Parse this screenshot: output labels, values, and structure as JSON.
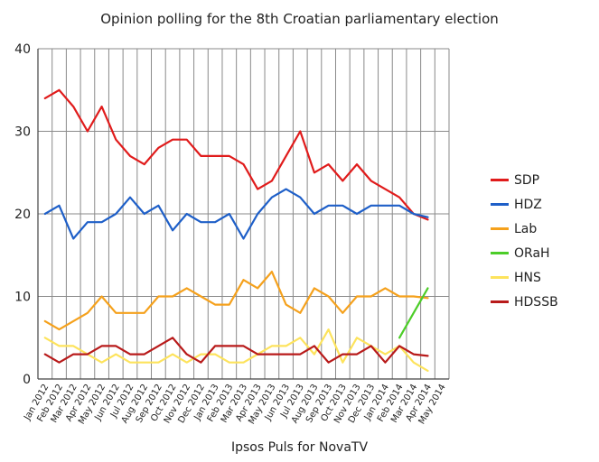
{
  "chart_data": {
    "type": "line",
    "title": "Opinion polling for the 8th Croatian parliamentary election",
    "xlabel": "Ipsos Puls for NovaTV",
    "ylabel": "",
    "ylim": [
      0,
      40
    ],
    "yticks": [
      "0",
      "10",
      "20",
      "30",
      "40"
    ],
    "grid": true,
    "legend_position": "right",
    "x": [
      "Jan 2012",
      "Feb 2012",
      "Mar 2012",
      "Apr 2012",
      "May 2012",
      "Jun 2012",
      "Jul 2012",
      "Aug 2012",
      "Sep 2012",
      "Oct 2012",
      "Nov 2012",
      "Dec 2012",
      "Jan 2013",
      "Feb 2013",
      "Mar 2013",
      "Apr 2013",
      "May 2013",
      "Jun 2013",
      "Jul 2013",
      "Aug 2013",
      "Sep 2013",
      "Oct 2013",
      "Nov 2013",
      "Dec 2013",
      "Jan 2014",
      "Feb 2014",
      "Mar 2014",
      "Apr 2014",
      "May 2014"
    ],
    "series": [
      {
        "name": "SDP",
        "color": "#e01b1b",
        "points": [
          [
            0,
            34
          ],
          [
            1,
            35
          ],
          [
            2,
            33
          ],
          [
            3,
            30
          ],
          [
            4,
            33
          ],
          [
            5,
            29
          ],
          [
            6,
            27
          ],
          [
            7,
            26
          ],
          [
            8,
            28
          ],
          [
            9,
            29
          ],
          [
            10,
            29
          ],
          [
            11,
            27
          ],
          [
            12,
            27
          ],
          [
            13,
            27
          ],
          [
            14,
            26
          ],
          [
            15,
            23
          ],
          [
            16,
            24
          ],
          [
            17,
            27
          ],
          [
            18,
            30
          ],
          [
            19,
            25
          ],
          [
            20,
            26
          ],
          [
            21,
            24
          ],
          [
            22,
            26
          ],
          [
            23,
            24
          ],
          [
            24,
            23
          ],
          [
            25,
            22
          ],
          [
            26,
            20
          ],
          [
            27,
            19.3
          ]
        ]
      },
      {
        "name": "HDZ",
        "color": "#1e5fc8",
        "points": [
          [
            0,
            20
          ],
          [
            1,
            21
          ],
          [
            2,
            17
          ],
          [
            3,
            19
          ],
          [
            4,
            19
          ],
          [
            5,
            20
          ],
          [
            6,
            22
          ],
          [
            7,
            20
          ],
          [
            8,
            21
          ],
          [
            9,
            18
          ],
          [
            10,
            20
          ],
          [
            11,
            19
          ],
          [
            12,
            19
          ],
          [
            13,
            20
          ],
          [
            14,
            17
          ],
          [
            15,
            20
          ],
          [
            16,
            22
          ],
          [
            17,
            23
          ],
          [
            18,
            22
          ],
          [
            19,
            20
          ],
          [
            20,
            21
          ],
          [
            21,
            21
          ],
          [
            22,
            20
          ],
          [
            23,
            21
          ],
          [
            24,
            21
          ],
          [
            25,
            21
          ],
          [
            26,
            20
          ],
          [
            27,
            19.6
          ]
        ]
      },
      {
        "name": "Lab",
        "color": "#f5a11c",
        "points": [
          [
            0,
            7
          ],
          [
            1,
            6
          ],
          [
            2,
            7
          ],
          [
            3,
            8
          ],
          [
            4,
            10
          ],
          [
            5,
            8
          ],
          [
            6,
            8
          ],
          [
            7,
            8
          ],
          [
            8,
            10
          ],
          [
            9,
            10
          ],
          [
            10,
            11
          ],
          [
            11,
            10
          ],
          [
            12,
            9
          ],
          [
            13,
            9
          ],
          [
            14,
            12
          ],
          [
            15,
            11
          ],
          [
            16,
            13
          ],
          [
            17,
            9
          ],
          [
            18,
            8
          ],
          [
            19,
            11
          ],
          [
            20,
            10
          ],
          [
            21,
            8
          ],
          [
            22,
            10
          ],
          [
            23,
            10
          ],
          [
            24,
            11
          ],
          [
            25,
            10
          ],
          [
            26,
            10
          ],
          [
            27,
            9.8
          ]
        ]
      },
      {
        "name": "ORaH",
        "color": "#4ccd28",
        "points": [
          [
            25,
            5
          ],
          [
            26,
            8
          ],
          [
            27,
            11
          ]
        ]
      },
      {
        "name": "HNS",
        "color": "#fde35c",
        "points": [
          [
            0,
            5
          ],
          [
            1,
            4
          ],
          [
            2,
            4
          ],
          [
            3,
            3
          ],
          [
            4,
            2
          ],
          [
            5,
            3
          ],
          [
            6,
            2
          ],
          [
            7,
            2
          ],
          [
            8,
            2
          ],
          [
            9,
            3
          ],
          [
            10,
            2
          ],
          [
            11,
            3
          ],
          [
            12,
            3
          ],
          [
            13,
            2
          ],
          [
            14,
            2
          ],
          [
            15,
            3
          ],
          [
            16,
            4
          ],
          [
            17,
            4
          ],
          [
            18,
            5
          ],
          [
            19,
            3
          ],
          [
            20,
            6
          ],
          [
            21,
            2
          ],
          [
            22,
            5
          ],
          [
            23,
            4
          ],
          [
            24,
            3
          ],
          [
            25,
            4
          ],
          [
            26,
            2
          ],
          [
            27,
            1
          ]
        ]
      },
      {
        "name": "HDSSB",
        "color": "#b81a1a",
        "points": [
          [
            0,
            3
          ],
          [
            1,
            2
          ],
          [
            2,
            3
          ],
          [
            3,
            3
          ],
          [
            4,
            4
          ],
          [
            5,
            4
          ],
          [
            6,
            3
          ],
          [
            7,
            3
          ],
          [
            8,
            4
          ],
          [
            9,
            5
          ],
          [
            10,
            3
          ],
          [
            11,
            2
          ],
          [
            12,
            4
          ],
          [
            13,
            4
          ],
          [
            14,
            4
          ],
          [
            15,
            3
          ],
          [
            16,
            3
          ],
          [
            17,
            3
          ],
          [
            18,
            3
          ],
          [
            19,
            4
          ],
          [
            20,
            2
          ],
          [
            21,
            3
          ],
          [
            22,
            3
          ],
          [
            23,
            4
          ],
          [
            24,
            2
          ],
          [
            25,
            4
          ],
          [
            26,
            3
          ],
          [
            27,
            2.8
          ]
        ]
      }
    ]
  }
}
